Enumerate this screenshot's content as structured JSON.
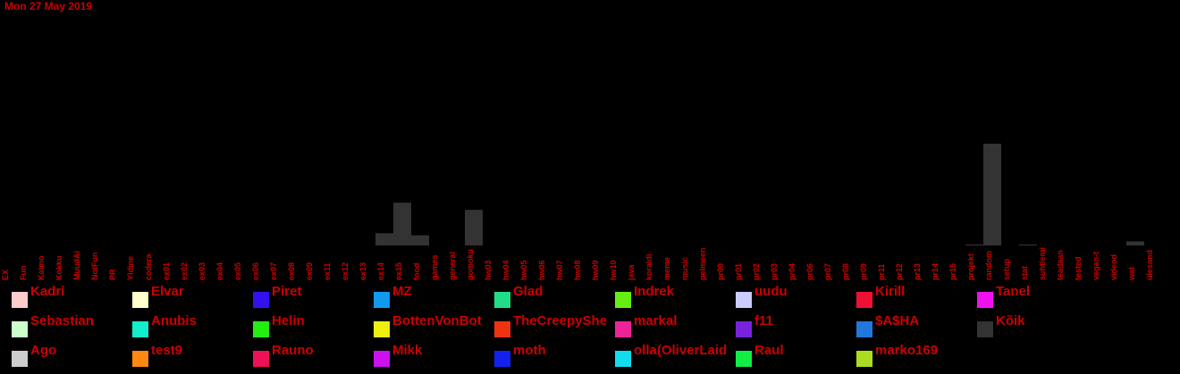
{
  "date_label": "Mon 27 May 2019",
  "chart_data": {
    "type": "bar",
    "title": "",
    "xlabel": "",
    "ylabel": "",
    "ylim": [
      0,
      100
    ],
    "grid": false,
    "legend_placement": "bottom",
    "bar_color": "#333333",
    "label_color": "#cc0000",
    "categories": [
      "EX",
      "Fun",
      "Kalmo",
      "Kokku",
      "MuudAi",
      "NotFun",
      "PR",
      "Yldine",
      "codera",
      "ex01",
      "ex02",
      "ex03",
      "ex04",
      "ex05",
      "ex06",
      "ex07",
      "ex08",
      "ex09",
      "ex11",
      "ex12",
      "ex13",
      "ex14",
      "ex15",
      "food",
      "games",
      "general",
      "gomoku",
      "hw03",
      "hw04",
      "hw05",
      "hw06",
      "hw07",
      "hw08",
      "hw09",
      "hw10",
      "java",
      "koraldi",
      "meme",
      "music",
      "pelmeen",
      "pr00",
      "pr01",
      "pr02",
      "pr03",
      "pr04",
      "pr06",
      "pr07",
      "pr08",
      "pr09",
      "pr11",
      "pr12",
      "pr13",
      "pr14",
      "pr15",
      "projekt",
      "random",
      "setup",
      "stat",
      "suhtlemi",
      "teadaan",
      "tested",
      "vegan-t",
      "videod",
      "wat",
      "ülesand"
    ],
    "values": [
      0,
      0,
      0,
      0,
      0,
      0,
      0,
      0,
      0,
      0,
      0,
      0,
      0,
      0,
      0,
      0,
      0,
      0,
      0,
      0,
      0,
      12,
      42,
      10,
      0,
      0,
      35,
      0,
      0,
      0,
      0,
      0,
      0,
      0,
      0,
      0,
      0,
      0,
      0,
      0,
      0,
      0,
      0,
      0,
      0,
      0,
      0,
      0,
      0,
      0,
      0,
      0,
      0,
      0,
      1,
      100,
      0,
      1,
      0,
      0,
      0,
      0,
      0,
      4,
      0
    ]
  },
  "legend": [
    {
      "name": "Kadri",
      "color": "#ffcccc"
    },
    {
      "name": "Elvar",
      "color": "#ffffcc"
    },
    {
      "name": "Piret",
      "color": "#3311ee"
    },
    {
      "name": "MZ",
      "color": "#1199ee"
    },
    {
      "name": "Glad",
      "color": "#22dd88"
    },
    {
      "name": "Indrek",
      "color": "#66ee11"
    },
    {
      "name": "uudu",
      "color": "#ccccff"
    },
    {
      "name": "Kirill",
      "color": "#ee1133"
    },
    {
      "name": "Tanel",
      "color": "#ee11ee"
    },
    {
      "name": "Sebastian",
      "color": "#ccffcc"
    },
    {
      "name": "Anubis",
      "color": "#11eecc"
    },
    {
      "name": "Helin",
      "color": "#22ee11"
    },
    {
      "name": "BottenVonBot",
      "color": "#eeee11"
    },
    {
      "name": "TheCreepyShe",
      "color": "#ee3311"
    },
    {
      "name": "markal",
      "color": "#ee2299"
    },
    {
      "name": "f11",
      "color": "#7722dd"
    },
    {
      "name": "$A$HA",
      "color": "#2277dd"
    },
    {
      "name": "Kõik",
      "color": "#333333"
    },
    {
      "name": "Ago",
      "color": "#cccccc"
    },
    {
      "name": "test9",
      "color": "#ff8811"
    },
    {
      "name": "Rauno",
      "color": "#ee1155"
    },
    {
      "name": "Mikk",
      "color": "#cc11ee"
    },
    {
      "name": "moth",
      "color": "#1122ee"
    },
    {
      "name": "olla(OliverLaid",
      "color": "#11ddee"
    },
    {
      "name": "Raul",
      "color": "#11ee44"
    },
    {
      "name": "marko169",
      "color": "#aadd22"
    }
  ]
}
